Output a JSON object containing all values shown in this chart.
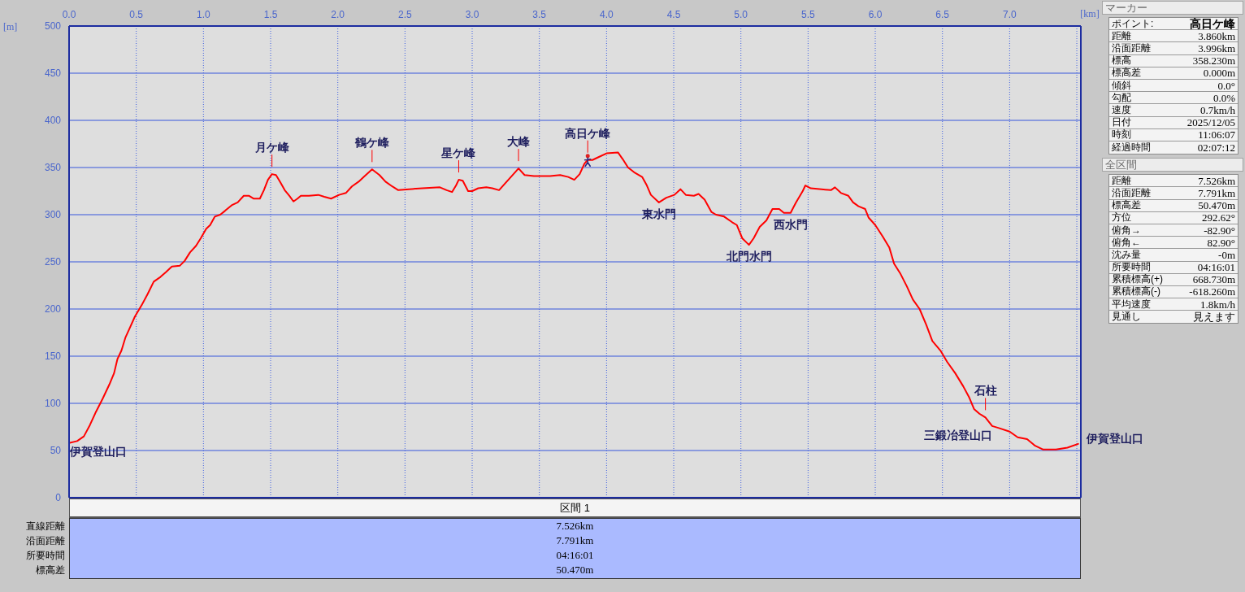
{
  "chart_data": [
    {
      "type": "line",
      "xlabel": "[km]",
      "ylabel": "[m]",
      "xlim": [
        0,
        7.53
      ],
      "ylim": [
        0,
        500
      ],
      "xticks": [
        {
          "value": 0,
          "label": "0.0"
        },
        0.5,
        {
          "value": 1,
          "label": "1.0"
        },
        1.5,
        {
          "value": 2,
          "label": "2.0"
        },
        2.5,
        {
          "value": 3,
          "label": "3.0"
        },
        3.5,
        {
          "value": 4,
          "label": "4.0"
        },
        4.5,
        {
          "value": 5,
          "label": "5.0"
        },
        5.5,
        {
          "value": 6,
          "label": "6.0"
        },
        6.5,
        {
          "value": 7,
          "label": "7.0"
        },
        {
          "value": 7.5,
          "label": null
        }
      ],
      "yticks": [
        0,
        50,
        100,
        150,
        200,
        250,
        300,
        350,
        400,
        450,
        500
      ],
      "grid": true,
      "series": [
        {
          "color": "#ff0000",
          "x": [
            0,
            0.06,
            0.11,
            0.155,
            0.2,
            0.25,
            0.3,
            0.335,
            0.36,
            0.39,
            0.42,
            0.455,
            0.49,
            0.54,
            0.585,
            0.63,
            0.68,
            0.72,
            0.765,
            0.825,
            0.86,
            0.9,
            0.945,
            0.98,
            1.02,
            1.05,
            1.085,
            1.125,
            1.16,
            1.21,
            1.255,
            1.3,
            1.34,
            1.375,
            1.42,
            1.45,
            1.48,
            1.51,
            1.54,
            1.57,
            1.605,
            1.64,
            1.67,
            1.7,
            1.725,
            1.785,
            1.855,
            1.9,
            1.95,
            2.01,
            2.06,
            2.105,
            2.155,
            2.2,
            2.255,
            2.31,
            2.355,
            2.405,
            2.45,
            2.53,
            2.63,
            2.76,
            2.81,
            2.85,
            2.88,
            2.9,
            2.93,
            2.97,
            3.0,
            3.045,
            3.105,
            3.15,
            3.2,
            3.25,
            3.295,
            3.345,
            3.39,
            3.46,
            3.51,
            3.58,
            3.655,
            3.715,
            3.76,
            3.8,
            3.835,
            3.86,
            3.895,
            3.94,
            4.0,
            4.085,
            4.12,
            4.16,
            4.205,
            4.265,
            4.3,
            4.33,
            4.39,
            4.445,
            4.505,
            4.55,
            4.59,
            4.65,
            4.685,
            4.73,
            4.78,
            4.815,
            4.875,
            4.935,
            4.97,
            5.01,
            5.06,
            5.095,
            5.14,
            5.19,
            5.235,
            5.285,
            5.32,
            5.37,
            5.41,
            5.46,
            5.48,
            5.52,
            5.6,
            5.67,
            5.7,
            5.745,
            5.8,
            5.835,
            5.875,
            5.925,
            5.95,
            6.0,
            6.055,
            6.105,
            6.14,
            6.185,
            6.235,
            6.28,
            6.33,
            6.38,
            6.425,
            6.485,
            6.535,
            6.595,
            6.655,
            6.7,
            6.735,
            6.775,
            6.82,
            6.87,
            6.915,
            7.0,
            7.06,
            7.13,
            7.19,
            7.25,
            7.345,
            7.43,
            7.51
          ],
          "values": [
            58,
            60,
            65,
            77,
            91,
            105,
            120,
            132,
            147,
            156,
            170,
            181,
            192,
            204,
            216,
            229,
            234,
            239,
            245,
            246,
            251,
            260,
            267,
            275,
            285,
            289,
            298,
            300,
            304,
            310,
            313,
            320,
            320,
            317,
            317,
            326,
            337,
            343,
            342,
            335,
            326,
            320,
            314,
            317,
            320,
            320,
            321,
            319,
            317,
            321,
            323,
            330,
            335,
            341,
            348,
            342,
            335,
            330,
            326,
            327,
            328,
            329,
            326,
            324,
            331,
            337,
            336,
            325,
            325,
            328,
            329,
            328,
            326,
            334,
            341,
            349,
            342,
            341,
            341,
            341,
            342,
            340,
            337,
            343,
            354,
            358,
            358,
            361,
            365,
            366,
            359,
            350,
            345,
            340,
            331,
            321,
            313,
            318,
            321,
            327,
            321,
            320,
            322,
            316,
            303,
            300,
            298,
            292,
            289,
            275,
            268,
            275,
            287,
            294,
            306,
            306,
            302,
            302,
            313,
            325,
            331,
            328,
            327,
            326,
            329,
            323,
            320,
            313,
            309,
            306,
            297,
            289,
            277,
            265,
            248,
            238,
            224,
            210,
            200,
            183,
            166,
            156,
            144,
            132,
            118,
            106,
            94,
            89,
            85,
            76,
            74,
            70,
            64,
            62,
            55,
            51,
            51,
            53,
            57
          ]
        }
      ],
      "annotations": [
        {
          "text": "伊賀登山口",
          "x": 0,
          "y": 58
        },
        {
          "text": "月ケ峰",
          "x": 1.51,
          "y": 343
        },
        {
          "text": "鶴ケ峰",
          "x": 2.255,
          "y": 348
        },
        {
          "text": "星ケ峰",
          "x": 2.9,
          "y": 337
        },
        {
          "text": "大峰",
          "x": 3.345,
          "y": 349
        },
        {
          "text": "高日ケ峰",
          "x": 3.86,
          "y": 358
        },
        {
          "text": "東水門",
          "x": 4.39,
          "y": 313
        },
        {
          "text": "北門水門",
          "x": 5.06,
          "y": 268
        },
        {
          "text": "西水門",
          "x": 5.37,
          "y": 302
        },
        {
          "text": "石柱",
          "x": 6.82,
          "y": 85
        },
        {
          "text": "三鍛冶登山口",
          "x": 6.87,
          "y": 76
        },
        {
          "text": "伊賀登山口",
          "x": 7.51,
          "y": 57
        }
      ]
    },
    {
      "type": "other",
      "title": "マーカー",
      "annotations": [
        "ポイント:",
        "高日ケ峰",
        "距離",
        "3.860km",
        "沿面距離",
        "3.996km",
        "標高",
        "358.230m",
        "標高差",
        "0.000m",
        "傾斜",
        "0.0°",
        "勾配",
        "0.0%",
        "速度",
        "0.7km/h",
        "日付",
        "2025/12/05",
        "時刻",
        "11:06:07",
        "経過時間",
        "02:07:12"
      ]
    },
    {
      "type": "other",
      "title": "全区間",
      "annotations": [
        "距離",
        "7.526km",
        "沿面距離",
        "7.791km",
        "標高差",
        "50.470m",
        "方位",
        "292.62°",
        "俯角→",
        "-82.90°",
        "俯角←",
        "82.90°",
        "沈み量",
        "-0m",
        "所要時間",
        "04:16:01",
        "累積標高(+)",
        "668.730m",
        "累積標高(-)",
        "-618.260m",
        "平均速度",
        "1.8km/h",
        "見通し",
        "見えます"
      ]
    },
    {
      "type": "other",
      "title": "区間 1",
      "annotations": [
        "直線距離",
        "7.526km",
        "沿面距離",
        "7.791km",
        "所要時間",
        "04:16:01",
        "標高差",
        "50.470m"
      ]
    }
  ]
}
